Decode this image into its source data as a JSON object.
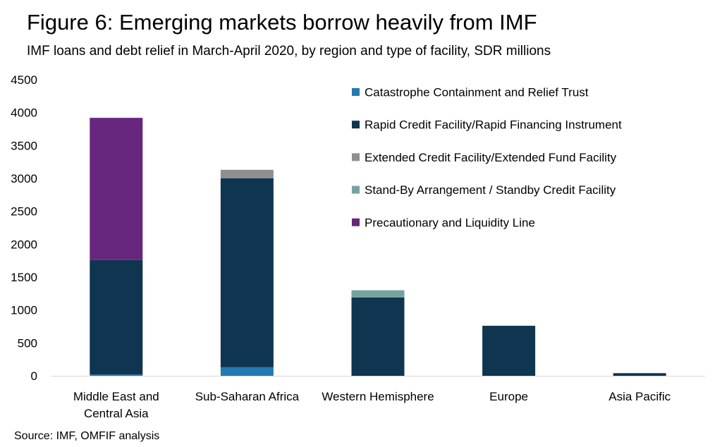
{
  "title": "Figure 6: Emerging markets borrow heavily from IMF",
  "subtitle": "IMF loans and debt relief in March-April 2020, by region and type of facility, SDR millions",
  "source": "Source: IMF, OMFIF analysis",
  "chart_data": {
    "type": "bar",
    "stacked": true,
    "categories": [
      [
        "Middle East and",
        "Central Asia"
      ],
      [
        "Sub-Saharan Africa"
      ],
      [
        "Western Hemisphere"
      ],
      [
        "Europe"
      ],
      [
        "Asia Pacific"
      ]
    ],
    "series": [
      {
        "name": "Catastrophe Containment and Relief Trust",
        "color": "#2479b3",
        "values": [
          20,
          130,
          0,
          0,
          0
        ]
      },
      {
        "name": "Rapid Credit Facility/Rapid Financing Instrument",
        "color": "#0f3550",
        "values": [
          1740,
          2870,
          1190,
          760,
          40
        ]
      },
      {
        "name": "Extended Credit Facility/Extended Fund Facility",
        "color": "#8f8f8f",
        "values": [
          0,
          130,
          0,
          0,
          0
        ]
      },
      {
        "name": "Stand-By Arrangement / Standby Credit Facility",
        "color": "#77a39e",
        "values": [
          0,
          0,
          110,
          0,
          0
        ]
      },
      {
        "name": "Precautionary and Liquidity Line",
        "color": "#67277e",
        "values": [
          2160,
          0,
          0,
          0,
          0
        ]
      }
    ],
    "ylim": [
      0,
      4500
    ],
    "yticks": [
      0,
      500,
      1000,
      1500,
      2000,
      2500,
      3000,
      3500,
      4000,
      4500
    ],
    "grid": false,
    "legend_position": "top-right",
    "xlabel": "",
    "ylabel": ""
  }
}
